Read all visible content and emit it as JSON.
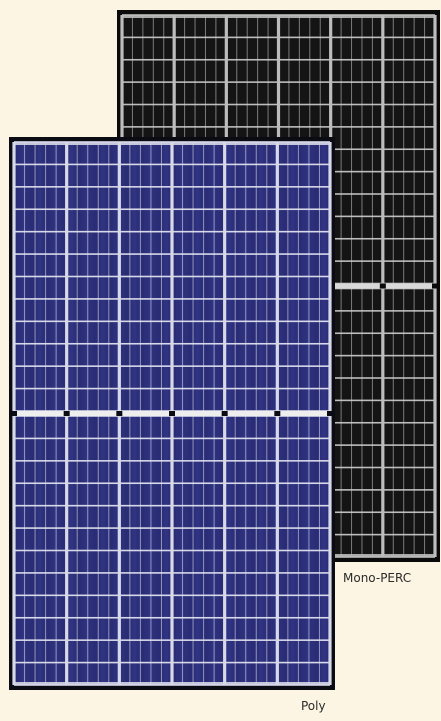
{
  "panels": {
    "mono": {
      "label": "Mono-PERC",
      "icon": "mono-perc-solar-panel",
      "frame_color": "#0a0a0a",
      "cell_color": "#141414",
      "busbar_color": "#cfcfcf"
    },
    "poly": {
      "label": "Poly",
      "icon": "polycrystalline-solar-panel",
      "frame_color": "#0b0b14",
      "cell_color": "#2c2f7a",
      "busbar_color": "#e6e6f0"
    }
  },
  "background_color": "#fdf5e3"
}
